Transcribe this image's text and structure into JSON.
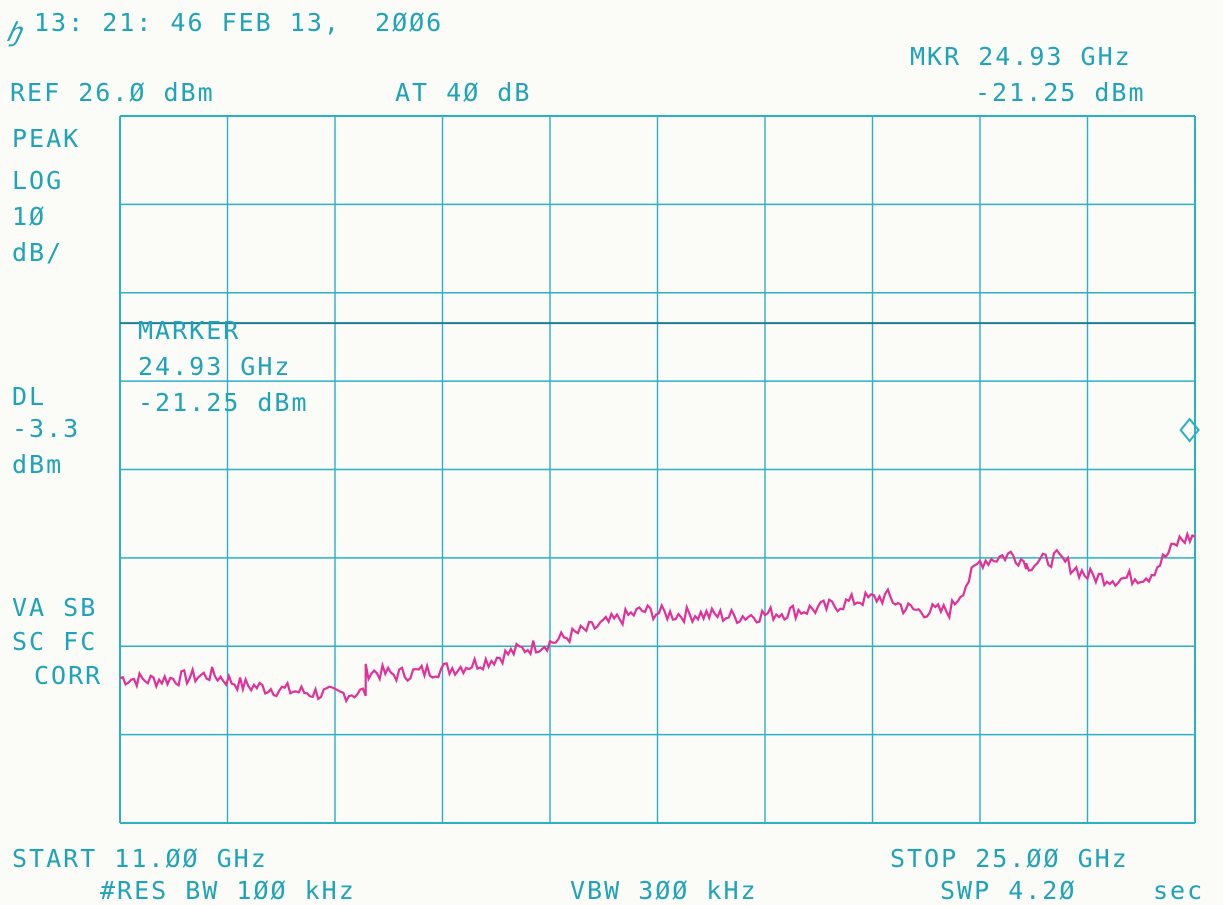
{
  "header": {
    "timestamp": "13: 21: 46 FEB 13,  2ØØ6",
    "logo": "hp",
    "marker_readout": "MKR 24.93 GHz",
    "marker_level": "-21.25 dBm",
    "ref_level": "REF 26.Ø dBm",
    "attenuation": "AT 4Ø dB"
  },
  "left_panel": {
    "detector": "PEAK",
    "scale_type": "LOG",
    "scale_value": "1Ø",
    "scale_unit": "dB/",
    "display_line_label": "DL",
    "display_line_value": "-3.3",
    "display_line_unit": "dBm",
    "status_1": "VA SB",
    "status_2": "SC FC",
    "status_3": "CORR"
  },
  "marker_box": {
    "title": "MARKER",
    "freq": "24.93 GHz",
    "level": "-21.25 dBm"
  },
  "footer": {
    "start": "START 11.ØØ GHz",
    "stop": "STOP 25.ØØ GHz",
    "rbw": "#RES BW 1ØØ kHz",
    "vbw": "VBW 3ØØ kHz",
    "sweep": "SWP 4.2Ø",
    "sweep_unit": "sec"
  },
  "colors": {
    "grid": "#2bb0c4",
    "text": "#1fa3b8",
    "trace": "#e0309a",
    "paper": "#fbfbf8"
  },
  "chart_data": {
    "type": "line",
    "title": "",
    "xlabel": "",
    "ylabel": "",
    "x_unit": "GHz",
    "y_unit": "dBm",
    "xlim": [
      11.0,
      25.0
    ],
    "ylim": [
      -74.0,
      26.0
    ],
    "grid": true,
    "grid_divisions": {
      "x": 10,
      "y": 8
    },
    "display_line_dbm": -3.3,
    "marker": {
      "x": 24.93,
      "y": -21.25
    },
    "series": [
      {
        "x": [
          11.0,
          11.4,
          11.8,
          12.2,
          12.6,
          13.0,
          13.4,
          13.8,
          14.2,
          14.2,
          14.6,
          15.0,
          15.4,
          15.8,
          16.2,
          16.6,
          17.0,
          17.4,
          17.8,
          18.2,
          18.6,
          19.0,
          19.4,
          19.8,
          20.2,
          20.6,
          21.0,
          21.2,
          21.4,
          21.8,
          22.2,
          22.6,
          22.8,
          22.8,
          23.2,
          23.6,
          24.0,
          24.4,
          24.8,
          25.0
        ],
        "y": [
          -53.5,
          -53.8,
          -53.5,
          -53.0,
          -54.5,
          -55.0,
          -55.5,
          -55.8,
          -55.5,
          -52.5,
          -53.0,
          -52.5,
          -52.0,
          -51.0,
          -49.5,
          -48.5,
          -47.0,
          -45.5,
          -44.0,
          -44.5,
          -44.5,
          -44.8,
          -44.5,
          -44.0,
          -43.5,
          -42.5,
          -42.0,
          -43.5,
          -44.0,
          -44.0,
          -37.0,
          -36.0,
          -37.0,
          -37.5,
          -36.5,
          -39.0,
          -39.5,
          -39.0,
          -34.0,
          -33.5
        ]
      }
    ]
  }
}
